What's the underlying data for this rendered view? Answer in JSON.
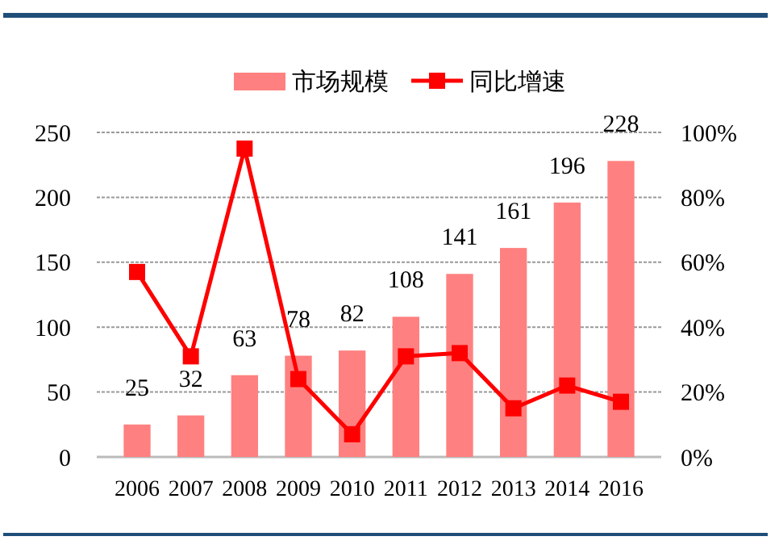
{
  "chart_data": {
    "type": "bar",
    "categories": [
      "2006",
      "2007",
      "2008",
      "2009",
      "2010",
      "2011",
      "2012",
      "2013",
      "2014",
      "2016"
    ],
    "series": [
      {
        "name": "市场规模",
        "color": "#ff8080",
        "values": [
          25,
          32,
          63,
          78,
          82,
          108,
          141,
          161,
          196,
          228
        ],
        "value_labels": [
          "25",
          "32",
          "63",
          "78",
          "82",
          "108",
          "141",
          "161",
          "196",
          "228"
        ]
      },
      {
        "name": "同比增速",
        "type": "line",
        "axis": "y2",
        "color": "#ff0000",
        "marker": "square",
        "values": [
          57,
          31,
          95,
          24,
          7,
          31,
          32,
          15,
          22,
          17
        ]
      }
    ],
    "ylim": [
      0,
      250
    ],
    "yticks": [
      0,
      50,
      100,
      150,
      200,
      250
    ],
    "y2lim": [
      0,
      100
    ],
    "y2ticks": [
      {
        "value": 0,
        "label": "0%"
      },
      {
        "value": 20,
        "label": "20%"
      },
      {
        "value": 40,
        "label": "40%"
      },
      {
        "value": 60,
        "label": "60%"
      },
      {
        "value": 80,
        "label": "80%"
      },
      {
        "value": 100,
        "label": "100%"
      }
    ],
    "grid": "y",
    "legend": "top"
  }
}
